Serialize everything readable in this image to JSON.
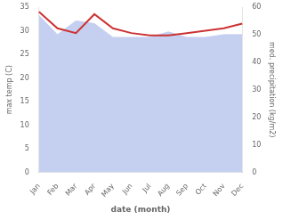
{
  "chart_data": {
    "type": "line",
    "categories": [
      "Jan",
      "Feb",
      "Mar",
      "Apr",
      "May",
      "Jun",
      "Jul",
      "Aug",
      "Sep",
      "Oct",
      "Nov",
      "Dec"
    ],
    "xlabel": "date (month)",
    "ylabel": "max temp (C)",
    "y2label": "med. precipitation (kg/m2)",
    "ylim": [
      0,
      35
    ],
    "yticks": [
      0,
      5,
      10,
      15,
      20,
      25,
      30,
      35
    ],
    "y2lim": [
      0,
      60
    ],
    "y2ticks": [
      0,
      10,
      20,
      30,
      40,
      50,
      60
    ],
    "grid": false,
    "series": [
      {
        "type": "area",
        "color": "#c5cff0",
        "axis": "y2",
        "values": [
          57,
          50,
          55,
          54,
          49,
          49,
          49,
          51,
          49,
          49,
          50,
          50
        ]
      },
      {
        "type": "line",
        "color": "#cc3333",
        "values": [
          34.0,
          30.5,
          29.5,
          33.5,
          30.5,
          29.5,
          29.0,
          29.0,
          29.5,
          30.0,
          30.5,
          31.5
        ]
      }
    ]
  }
}
